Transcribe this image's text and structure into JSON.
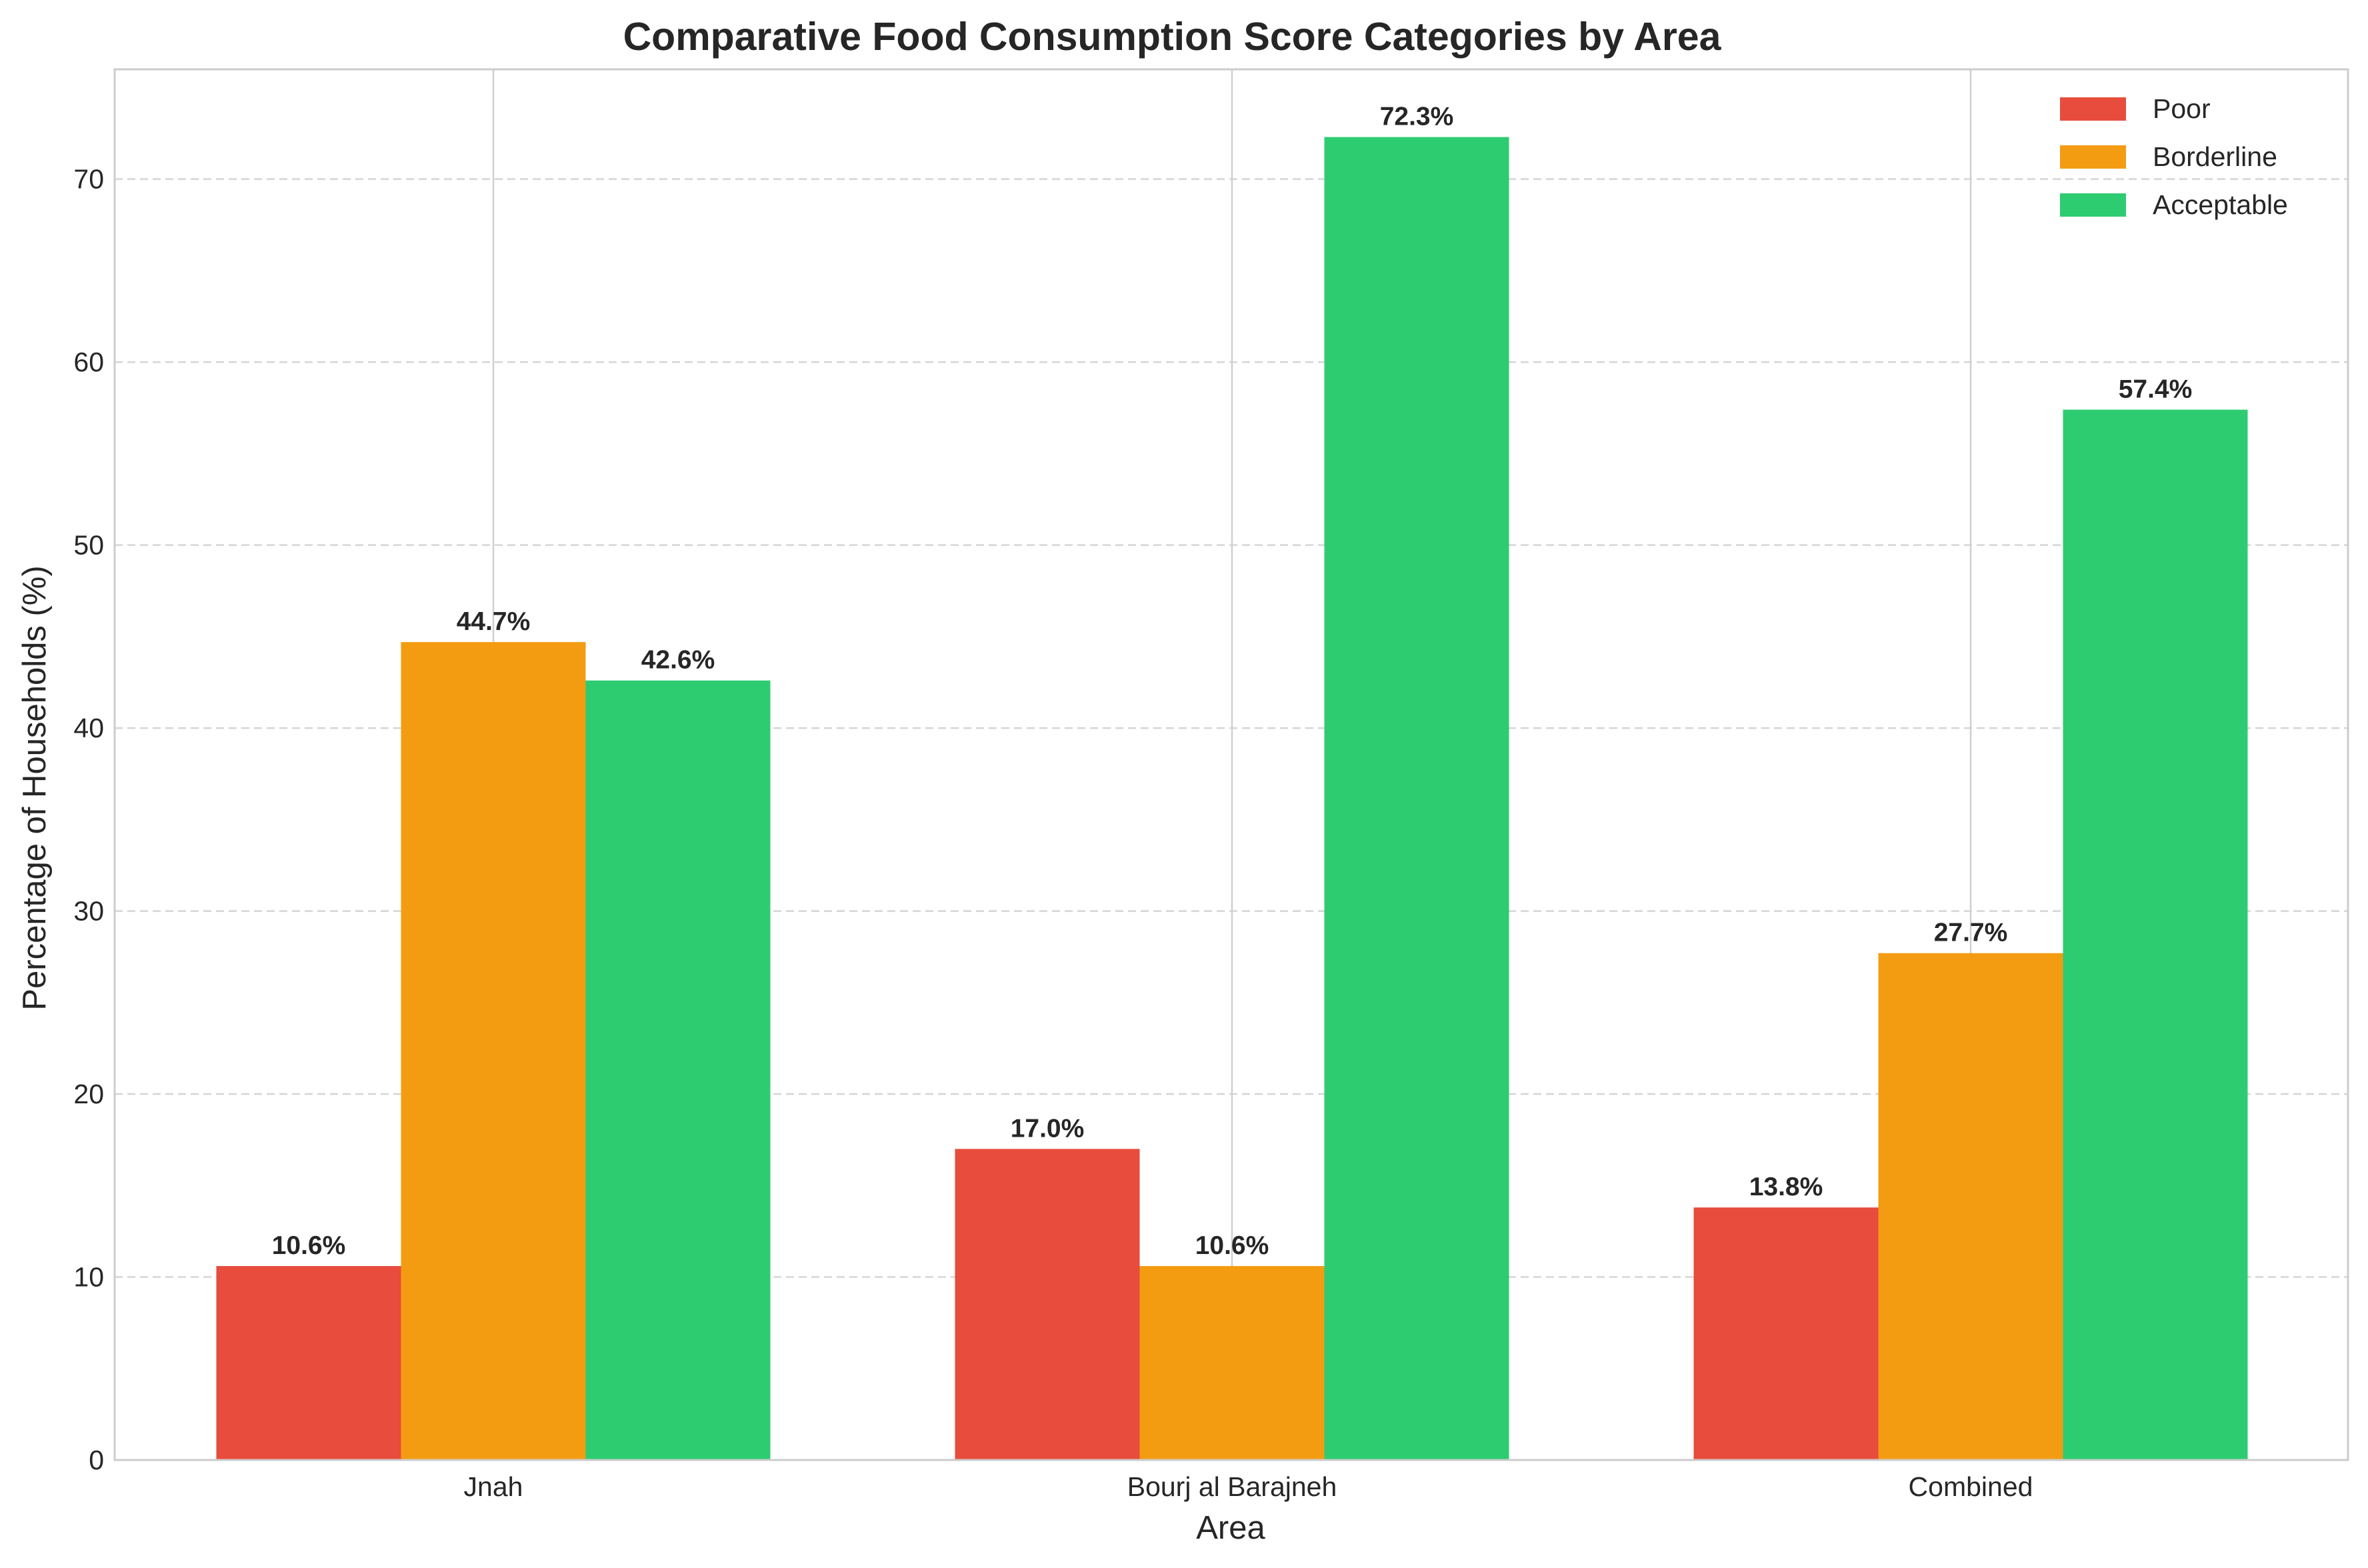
{
  "chart_data": {
    "type": "bar",
    "title": "Comparative Food Consumption Score Categories by Area",
    "xlabel": "Area",
    "ylabel": "Percentage of Households (%)",
    "categories": [
      "Jnah",
      "Bourj al Barajneh",
      "Combined"
    ],
    "series": [
      {
        "name": "Poor",
        "color": "#e74c3c",
        "values": [
          10.6,
          17.0,
          13.8
        ]
      },
      {
        "name": "Borderline",
        "color": "#f39c12",
        "values": [
          44.7,
          10.6,
          27.7
        ]
      },
      {
        "name": "Acceptable",
        "color": "#2ecc71",
        "values": [
          42.6,
          72.3,
          57.4
        ]
      }
    ],
    "ylim": [
      0,
      76
    ],
    "yticks": [
      0,
      10,
      20,
      30,
      40,
      50,
      60,
      70
    ],
    "value_format_suffix": "%",
    "grid": {
      "y": "dashed",
      "x": "solid at category centers"
    },
    "legend_position": "top-right"
  }
}
